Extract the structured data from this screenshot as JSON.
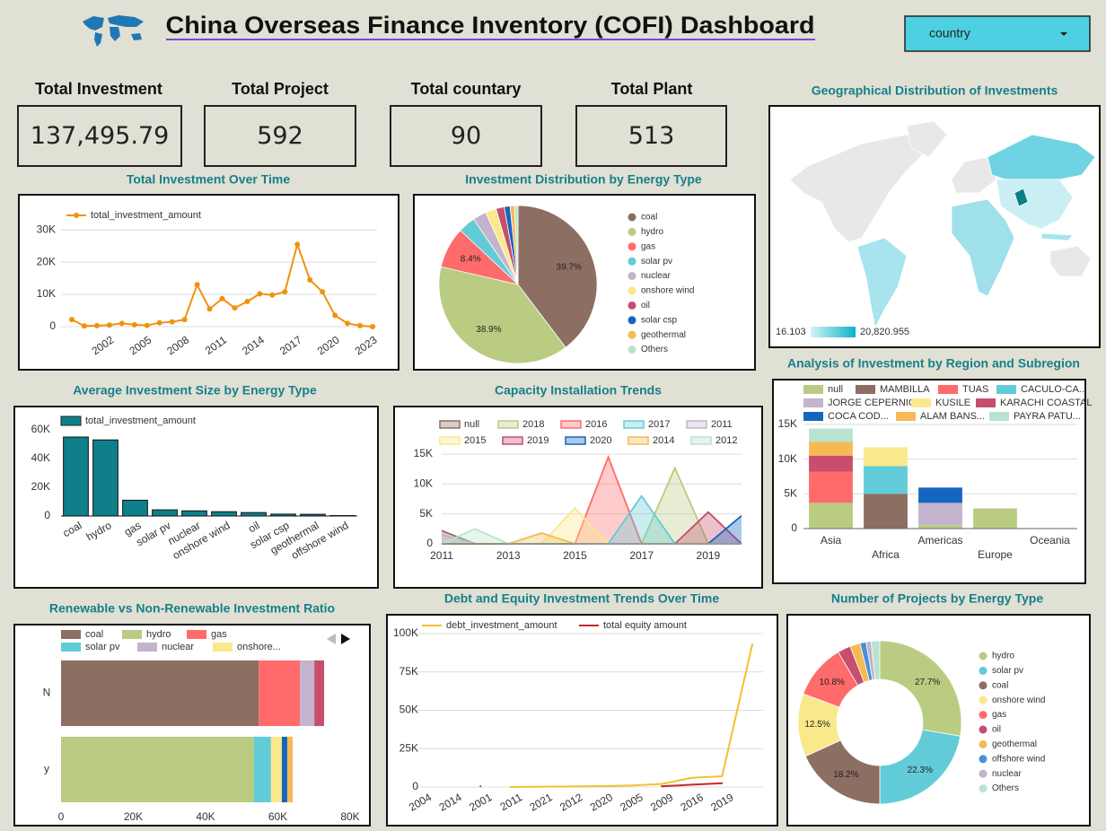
{
  "header": {
    "title": "China Overseas Finance Inventory (COFI) Dashboard",
    "filter": "country"
  },
  "kpis": [
    {
      "label": "Total Investment",
      "value": 137495.79,
      "value_label": "137,495.79"
    },
    {
      "label": "Total Project",
      "value": 592
    },
    {
      "label": "Total countary",
      "value": 90
    },
    {
      "label": "Total Plant",
      "value": 513
    }
  ],
  "chart_data": [
    {
      "type": "line",
      "title": "Total Investment Over Time",
      "x": [
        1999,
        2000,
        2001,
        2002,
        2003,
        2004,
        2005,
        2006,
        2007,
        2008,
        2009,
        2010,
        2011,
        2012,
        2013,
        2014,
        2015,
        2016,
        2017,
        2018,
        2019,
        2020,
        2021,
        2022,
        2023
      ],
      "xlim": [
        1999,
        2023
      ],
      "xticks": [
        2002,
        2005,
        2008,
        2011,
        2014,
        2017,
        2020,
        2023
      ],
      "ylim": [
        0,
        32000
      ],
      "yticks": [
        0,
        {
          "value": 10000,
          "label": "10K"
        },
        {
          "value": 20000,
          "label": "20K"
        },
        {
          "value": 30000,
          "label": "30K"
        }
      ],
      "grid": true,
      "markers": true,
      "series": [
        {
          "name": "total_investment_amount",
          "color": "#f0920e",
          "values": [
            2200,
            200,
            300,
            500,
            1000,
            600,
            400,
            1200,
            1500,
            2200,
            13000,
            5500,
            8700,
            5800,
            7800,
            10200,
            9800,
            10800,
            25500,
            14500,
            10800,
            3500,
            1000,
            300,
            0
          ]
        }
      ]
    },
    {
      "type": "pie",
      "title": "Investment Distribution by Energy Type",
      "categories": [
        "coal",
        "hydro",
        "gas",
        "solar pv",
        "nuclear",
        "onshore wind",
        "oil",
        "solar csp",
        "geothermal",
        "Others"
      ],
      "values": [
        39.7,
        38.9,
        8.4,
        3.5,
        2.8,
        2.2,
        1.7,
        1.2,
        0.9,
        0.7
      ],
      "value_labels": [
        "39.7%",
        "38.9%",
        "8.4%",
        null,
        null,
        null,
        null,
        null,
        null,
        null
      ],
      "colors": [
        "#8d6e63",
        "#b9cc82",
        "#ff6b6b",
        "#62cbd8",
        "#c3b3cc",
        "#f9e98a",
        "#c74e6d",
        "#1565c0",
        "#f6b954",
        "#b7e3cf"
      ]
    },
    {
      "type": "map",
      "title": "Geographical Distribution of Investments",
      "color_scale": {
        "min": 16.103,
        "max": {
          "value": 20820.955,
          "label": "20,820.955"
        },
        "colors": [
          "#d4f3f7",
          "#0bb3c9"
        ]
      }
    },
    {
      "type": "bar",
      "title": "Average Investment Size by Energy Type",
      "categories": [
        "coal",
        "hydro",
        "gas",
        "solar pv",
        "nuclear",
        "onshore wind",
        "oil",
        "solar csp",
        "geothermal",
        "offshore wind"
      ],
      "series": [
        {
          "name": "total_investment_amount",
          "color": "#0f7f8a",
          "values": [
            55000,
            53000,
            11000,
            4300,
            3600,
            3000,
            2400,
            1300,
            1200,
            300
          ]
        }
      ],
      "ylim": [
        0,
        65000
      ],
      "yticks": [
        0,
        {
          "value": 20000,
          "label": "20K"
        },
        {
          "value": 40000,
          "label": "40K"
        },
        {
          "value": 60000,
          "label": "60K"
        }
      ],
      "grid": false
    },
    {
      "type": "area",
      "title": "Capacity Installation Trends",
      "x": [
        2011,
        2012,
        2013,
        2014,
        2015,
        2016,
        2017,
        2018,
        2019,
        2020
      ],
      "xlim": [
        2011,
        2020
      ],
      "xticks": [
        2011,
        2013,
        2015,
        2017,
        2019
      ],
      "ylim": [
        0,
        15000
      ],
      "yticks": [
        0,
        {
          "value": 5000,
          "label": "5K"
        },
        {
          "value": 10000,
          "label": "10K"
        },
        {
          "value": 15000,
          "label": "15K"
        }
      ],
      "grid": true,
      "series": [
        {
          "name": "null",
          "color": "#8d6e63",
          "values": [
            2200,
            0,
            0,
            0,
            0,
            0,
            0,
            0,
            0,
            0
          ]
        },
        {
          "name": "2018",
          "color": "#b9cc82",
          "values": [
            0,
            0,
            0,
            0,
            0,
            0,
            0,
            12700,
            0,
            0
          ]
        },
        {
          "name": "2016",
          "color": "#ff6b6b",
          "values": [
            0,
            0,
            0,
            0,
            0,
            14500,
            0,
            0,
            0,
            0
          ]
        },
        {
          "name": "2017",
          "color": "#62cbd8",
          "values": [
            0,
            0,
            0,
            0,
            0,
            0,
            8000,
            0,
            0,
            0
          ]
        },
        {
          "name": "2011",
          "color": "#c3b3cc",
          "values": [
            1500,
            0,
            0,
            0,
            0,
            0,
            0,
            0,
            0,
            0
          ]
        },
        {
          "name": "2015",
          "color": "#f9e98a",
          "values": [
            0,
            0,
            0,
            0,
            6000,
            0,
            0,
            0,
            0,
            0
          ]
        },
        {
          "name": "2019",
          "color": "#c74e6d",
          "values": [
            0,
            0,
            0,
            0,
            0,
            0,
            0,
            0,
            5300,
            0
          ]
        },
        {
          "name": "2020",
          "color": "#1565c0",
          "values": [
            0,
            0,
            0,
            0,
            0,
            0,
            0,
            0,
            0,
            4700
          ]
        },
        {
          "name": "2014",
          "color": "#f6b954",
          "values": [
            0,
            0,
            0,
            1800,
            0,
            0,
            0,
            0,
            0,
            0
          ]
        },
        {
          "name": "2012",
          "color": "#b7e3cf",
          "values": [
            0,
            2500,
            0,
            0,
            0,
            0,
            0,
            0,
            0,
            0
          ]
        }
      ]
    },
    {
      "type": "stacked_bar",
      "title": "Analysis of Investment by Region and Subregion",
      "categories": [
        "Asia",
        "Africa",
        "Americas",
        "Europe",
        "Oceania"
      ],
      "ylim": [
        0,
        15500
      ],
      "yticks": [
        0,
        {
          "value": 5000,
          "label": "5K"
        },
        {
          "value": 10000,
          "label": "10K"
        },
        {
          "value": 15000,
          "label": "15K"
        }
      ],
      "grid": true,
      "series": [
        {
          "name": "null",
          "color": "#b9cc82",
          "values": [
            3700,
            null,
            500,
            2900,
            null
          ]
        },
        {
          "name": "MAMBILLA",
          "color": "#8d6e63",
          "values": [
            null,
            5000,
            null,
            null,
            null
          ]
        },
        {
          "name": "TUAS",
          "color": "#ff6b6b",
          "values": [
            4500,
            null,
            null,
            null,
            null
          ]
        },
        {
          "name": "CACULO-CA...",
          "color": "#62cbd8",
          "values": [
            null,
            4000,
            null,
            null,
            null
          ]
        },
        {
          "name": "JORGE CEPERNIC",
          "color": "#c3b3cc",
          "values": [
            null,
            null,
            3200,
            null,
            null
          ]
        },
        {
          "name": "KUSILE",
          "color": "#f9e98a",
          "values": [
            null,
            2700,
            null,
            null,
            null
          ]
        },
        {
          "name": "KARACHI COASTAL",
          "color": "#c74e6d",
          "values": [
            2300,
            null,
            null,
            null,
            null
          ]
        },
        {
          "name": "COCA COD...",
          "color": "#1565c0",
          "values": [
            null,
            null,
            2200,
            null,
            null
          ]
        },
        {
          "name": "ALAM BANS...",
          "color": "#f6b954",
          "values": [
            2000,
            null,
            null,
            null,
            null
          ]
        },
        {
          "name": "PAYRA PATU...",
          "color": "#b7e3cf",
          "values": [
            1900,
            null,
            null,
            null,
            null
          ]
        }
      ]
    },
    {
      "type": "stacked_barh",
      "title": "Renewable vs Non-Renewable Investment Ratio",
      "categories": [
        "N",
        "y"
      ],
      "xlim": [
        0,
        80000
      ],
      "xticks": [
        0,
        {
          "value": 20000,
          "label": "20K"
        },
        {
          "value": 40000,
          "label": "40K"
        },
        {
          "value": 60000,
          "label": "60K"
        },
        {
          "value": 80000,
          "label": "80K"
        }
      ],
      "grid": false,
      "series": [
        {
          "name": "coal",
          "color": "#8d6e63",
          "values": [
            54700,
            null
          ]
        },
        {
          "name": "hydro",
          "color": "#b9cc82",
          "values": [
            null,
            53400
          ]
        },
        {
          "name": "gas",
          "color": "#ff6b6b",
          "values": [
            11400,
            null
          ]
        },
        {
          "name": "solar pv",
          "color": "#62cbd8",
          "values": [
            null,
            4700
          ]
        },
        {
          "name": "nuclear",
          "color": "#c3b3cc",
          "values": [
            4000,
            null
          ]
        },
        {
          "name": "onshore...",
          "color": "#f9e98a",
          "values": [
            null,
            3000
          ]
        },
        {
          "name": null,
          "color": "#c74e6d",
          "values": [
            2700,
            null
          ]
        },
        {
          "name": null,
          "color": "#1565c0",
          "values": [
            null,
            1500
          ]
        },
        {
          "name": null,
          "color": "#f6b954",
          "values": [
            null,
            1500
          ]
        }
      ]
    },
    {
      "type": "line",
      "title": "Debt and Equity Investment Trends Over Time",
      "categories": [
        "2004",
        "2014",
        "2001",
        "2011",
        "2021",
        "2012",
        "2020",
        "2005",
        "2009",
        "2016",
        "2019",
        null
      ],
      "ylim": [
        0,
        100000
      ],
      "yticks": [
        0,
        {
          "value": 25000,
          "label": "25K"
        },
        {
          "value": 50000,
          "label": "50K"
        },
        {
          "value": 75000,
          "label": "75K"
        },
        {
          "value": 100000,
          "label": "100K"
        }
      ],
      "grid": true,
      "markers": false,
      "series": [
        {
          "name": "debt_investment_amount",
          "color": "#f2c12e",
          "values": [
            null,
            null,
            null,
            0,
            200,
            400,
            600,
            1000,
            2000,
            6000,
            7000,
            93000
          ]
        },
        {
          "name": "total equity amount",
          "color": "#c62828",
          "values": [
            null,
            null,
            500,
            null,
            null,
            null,
            null,
            null,
            500,
            1500,
            2500,
            null
          ]
        }
      ]
    },
    {
      "type": "donut",
      "title": "Number of Projects by Energy Type",
      "categories": [
        "hydro",
        "solar pv",
        "coal",
        "onshore wind",
        "gas",
        "oil",
        "geothermal",
        "offshore wind",
        "nuclear",
        "Others"
      ],
      "values": [
        27.7,
        22.3,
        18.2,
        12.5,
        10.8,
        2.6,
        2.0,
        1.2,
        1.0,
        1.7
      ],
      "value_labels": [
        "27.7%",
        "22.3%",
        "18.2%",
        "12.5%",
        "10.8%",
        null,
        null,
        null,
        null,
        null
      ],
      "colors": [
        "#b9cc82",
        "#62cbd8",
        "#8d6e63",
        "#f9e98a",
        "#ff6b6b",
        "#c74e6d",
        "#f6b954",
        "#4a90d9",
        "#c3b3cc",
        "#b7e3cf"
      ]
    }
  ]
}
